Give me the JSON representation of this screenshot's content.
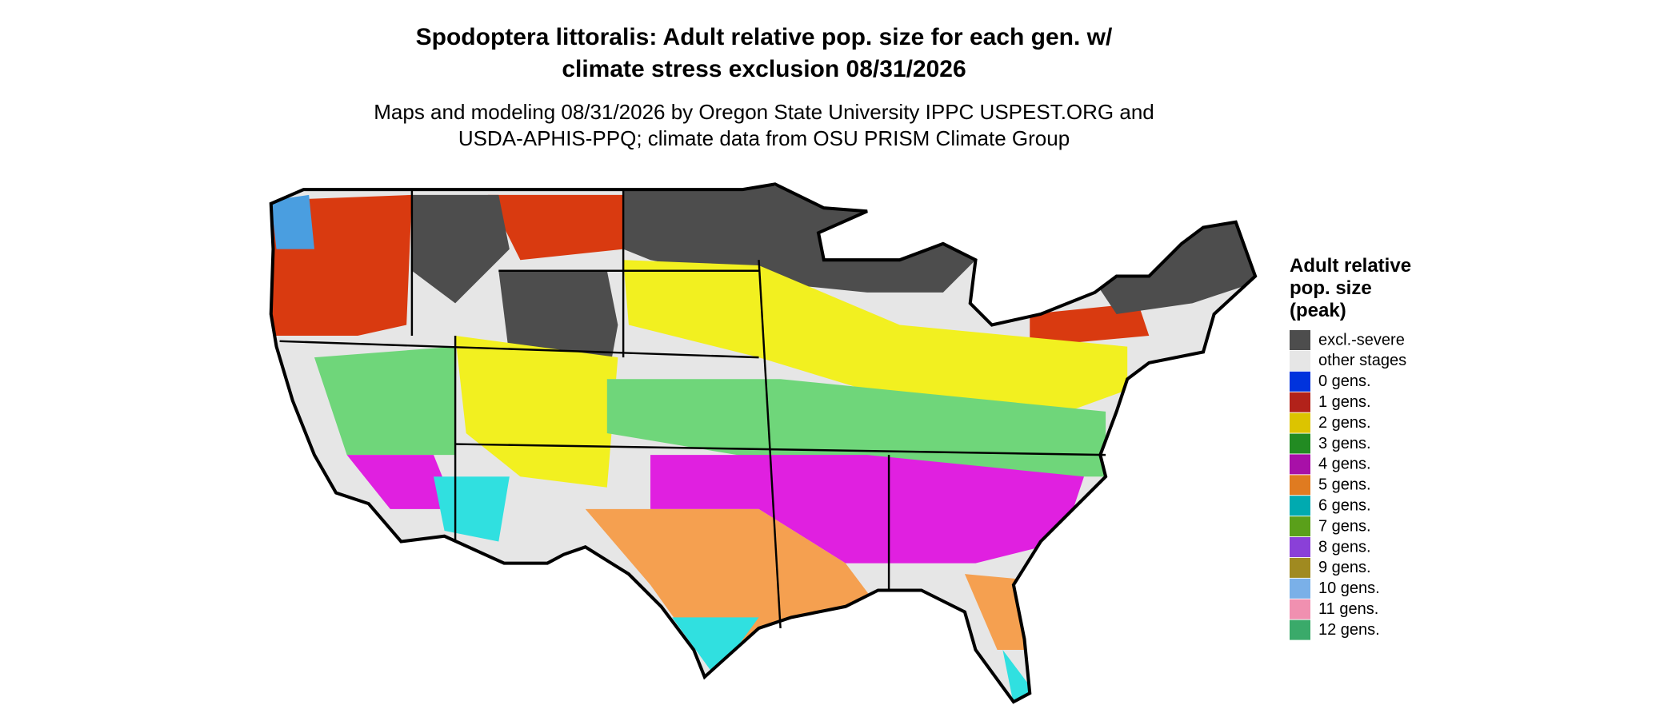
{
  "header": {
    "title": [
      "Spodoptera littoralis: Adult relative pop. size for each gen. w/",
      "climate stress exclusion 08/31/2026"
    ],
    "subtitle": [
      "Maps and modeling 08/31/2026 by Oregon State University IPPC USPEST.ORG and",
      "USDA-APHIS-PPQ; climate data from OSU PRISM Climate Group"
    ]
  },
  "legend": {
    "title": [
      "Adult relative",
      "pop. size",
      "(peak)"
    ],
    "items": [
      {
        "label": "excl.-severe",
        "color": "#4d4d4d"
      },
      {
        "label": "other stages",
        "color": "#e6e6e6"
      },
      {
        "label": "0 gens.",
        "color": "#0033dd"
      },
      {
        "label": "1 gens.",
        "color": "#b2221a"
      },
      {
        "label": "2 gens.",
        "color": "#dcc400"
      },
      {
        "label": "3 gens.",
        "color": "#228b22"
      },
      {
        "label": "4 gens.",
        "color": "#a810a8"
      },
      {
        "label": "5 gens.",
        "color": "#e07b20"
      },
      {
        "label": "6 gens.",
        "color": "#00aab0"
      },
      {
        "label": "7 gens.",
        "color": "#5aa01a"
      },
      {
        "label": "8 gens.",
        "color": "#8a40d8"
      },
      {
        "label": "9 gens.",
        "color": "#a08a20"
      },
      {
        "label": "10 gens.",
        "color": "#7ab0e8"
      },
      {
        "label": "11 gens.",
        "color": "#f090b0"
      },
      {
        "label": "12 gens.",
        "color": "#3aaa6a"
      }
    ]
  }
}
